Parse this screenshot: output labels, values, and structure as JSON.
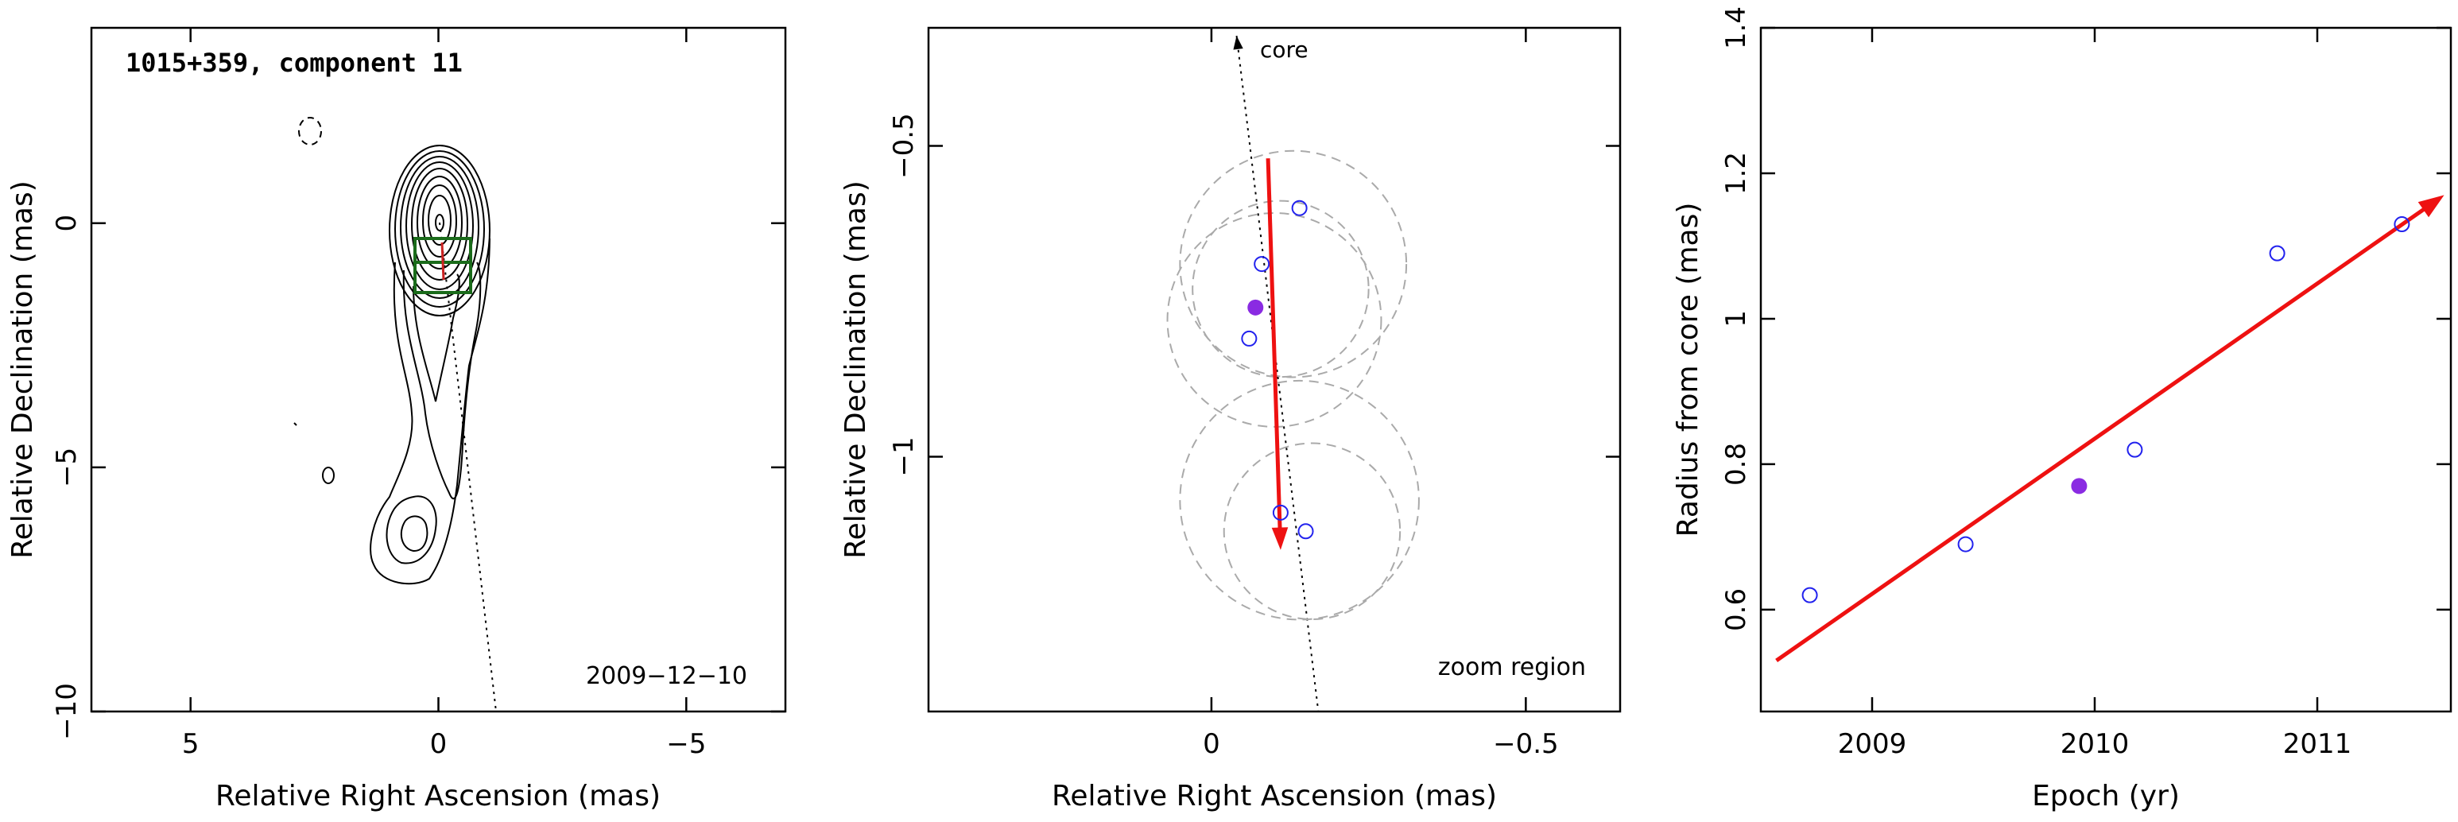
{
  "chart_data": [
    {
      "type": "contour",
      "title": "1015+359, component 11",
      "date": "2009−12−10",
      "xlabel": "Relative Right Ascension (mas)",
      "ylabel": "Relative Declination (mas)",
      "xlim": [
        7,
        -7
      ],
      "ylim": [
        -10,
        4
      ],
      "xticks": [
        5,
        0,
        -5
      ],
      "yticks": [
        0,
        -5,
        -10
      ],
      "xtick_labels": [
        "5",
        "0",
        "−5"
      ],
      "ytick_labels": [
        "0",
        "−5",
        "−10"
      ],
      "colors": {
        "contour": "#000000",
        "zoom_box": "#1a6b1a",
        "track": "#cc2222"
      }
    },
    {
      "type": "scatter",
      "annotation_core": "core",
      "annotation_zoom": "zoom region",
      "xlabel": "Relative Right Ascension (mas)",
      "ylabel": "Relative Declination (mas)",
      "xlim": [
        0.45,
        -0.65
      ],
      "ylim": [
        -1.41,
        -0.31
      ],
      "xticks": [
        0,
        -0.5
      ],
      "yticks": [
        -0.5,
        -1
      ],
      "xtick_labels": [
        "0",
        "−0.5"
      ],
      "ytick_labels": [
        "−0.5",
        "−1"
      ],
      "points_open": [
        {
          "x": -0.14,
          "y": -0.6
        },
        {
          "x": -0.08,
          "y": -0.69
        },
        {
          "x": -0.06,
          "y": -0.81
        },
        {
          "x": -0.11,
          "y": -1.09
        },
        {
          "x": -0.15,
          "y": -1.12
        }
      ],
      "points_filled": [
        {
          "x": -0.07,
          "y": -0.76
        }
      ],
      "circles": [
        {
          "x": -0.13,
          "y": -0.69,
          "r": 0.18
        },
        {
          "x": -0.11,
          "y": -0.73,
          "r": 0.14
        },
        {
          "x": -0.1,
          "y": -0.78,
          "r": 0.17
        },
        {
          "x": -0.14,
          "y": -1.07,
          "r": 0.19
        },
        {
          "x": -0.16,
          "y": -1.12,
          "r": 0.14
        }
      ],
      "arrow": {
        "x0": -0.09,
        "y0": -0.52,
        "x1": -0.11,
        "y1": -1.15
      },
      "core_line": {
        "x0": -0.04,
        "y0": -0.31,
        "x1": -0.17,
        "y1": -1.41
      },
      "colors": {
        "open": "#2222ee",
        "filled": "#8a2be2",
        "arrow": "#ee1111",
        "circles": "#aaaaaa"
      }
    },
    {
      "type": "scatter",
      "xlabel": "Epoch (yr)",
      "ylabel": "Radius from core (mas)",
      "xlim": [
        2008.5,
        2011.6
      ],
      "ylim": [
        0.46,
        1.4
      ],
      "xticks": [
        2009,
        2010,
        2011
      ],
      "yticks": [
        0.6,
        0.8,
        1,
        1.2,
        1.4
      ],
      "xtick_labels": [
        "2009",
        "2010",
        "2011"
      ],
      "ytick_labels": [
        "0.6",
        "0.8",
        "1",
        "1.2",
        "1.4"
      ],
      "points_open": [
        {
          "x": 2008.72,
          "y": 0.62
        },
        {
          "x": 2009.42,
          "y": 0.69
        },
        {
          "x": 2010.18,
          "y": 0.82
        },
        {
          "x": 2010.82,
          "y": 1.09
        },
        {
          "x": 2011.38,
          "y": 1.13
        }
      ],
      "points_filled": [
        {
          "x": 2009.93,
          "y": 0.77
        }
      ],
      "fit_arrow": {
        "x0": 2008.57,
        "y0": 0.53,
        "x1": 2011.57,
        "y1": 1.17
      },
      "colors": {
        "open": "#2222ee",
        "filled": "#8a2be2",
        "arrow": "#ee1111"
      }
    }
  ]
}
